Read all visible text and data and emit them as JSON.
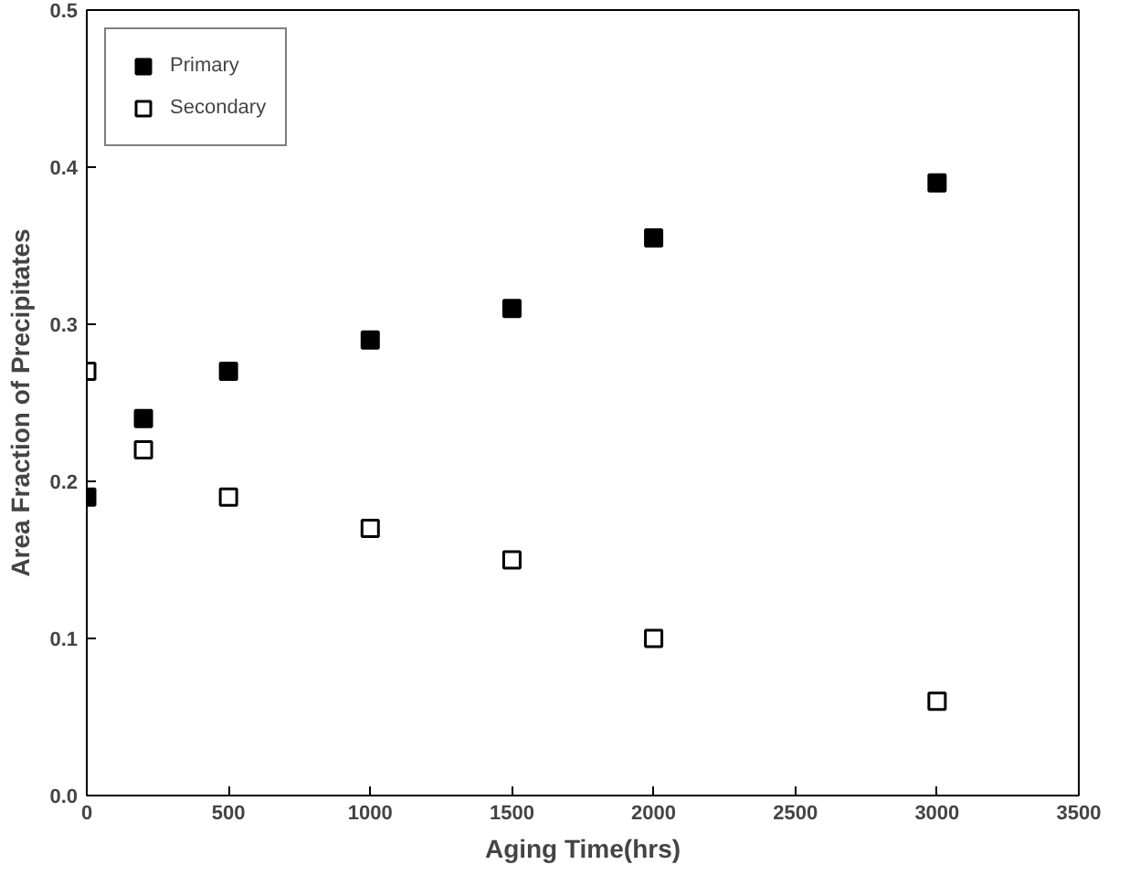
{
  "chart_data": {
    "type": "scatter",
    "xlabel": "Aging Time(hrs)",
    "ylabel": "Area Fraction of Precipitates",
    "x": [
      0,
      200,
      500,
      1000,
      1500,
      2000,
      3000
    ],
    "series": [
      {
        "name": "Primary",
        "color": "#000000",
        "values": [
          0.19,
          0.24,
          0.27,
          0.29,
          0.31,
          0.355,
          0.39
        ]
      },
      {
        "name": "Secondary",
        "color": "#ffffff",
        "values": [
          0.27,
          0.22,
          0.19,
          0.17,
          0.15,
          0.1,
          0.06
        ]
      }
    ],
    "xlim": [
      0,
      3500
    ],
    "xticks": [
      0,
      500,
      1000,
      1500,
      2000,
      2500,
      3000,
      3500
    ],
    "ylim": [
      0,
      0.5
    ],
    "yticks": [
      {
        "value": 0,
        "label": "0.0"
      },
      0.1,
      0.2,
      0.3,
      0.4,
      0.5
    ],
    "grid": false,
    "legend": "top left",
    "marker": "square"
  }
}
